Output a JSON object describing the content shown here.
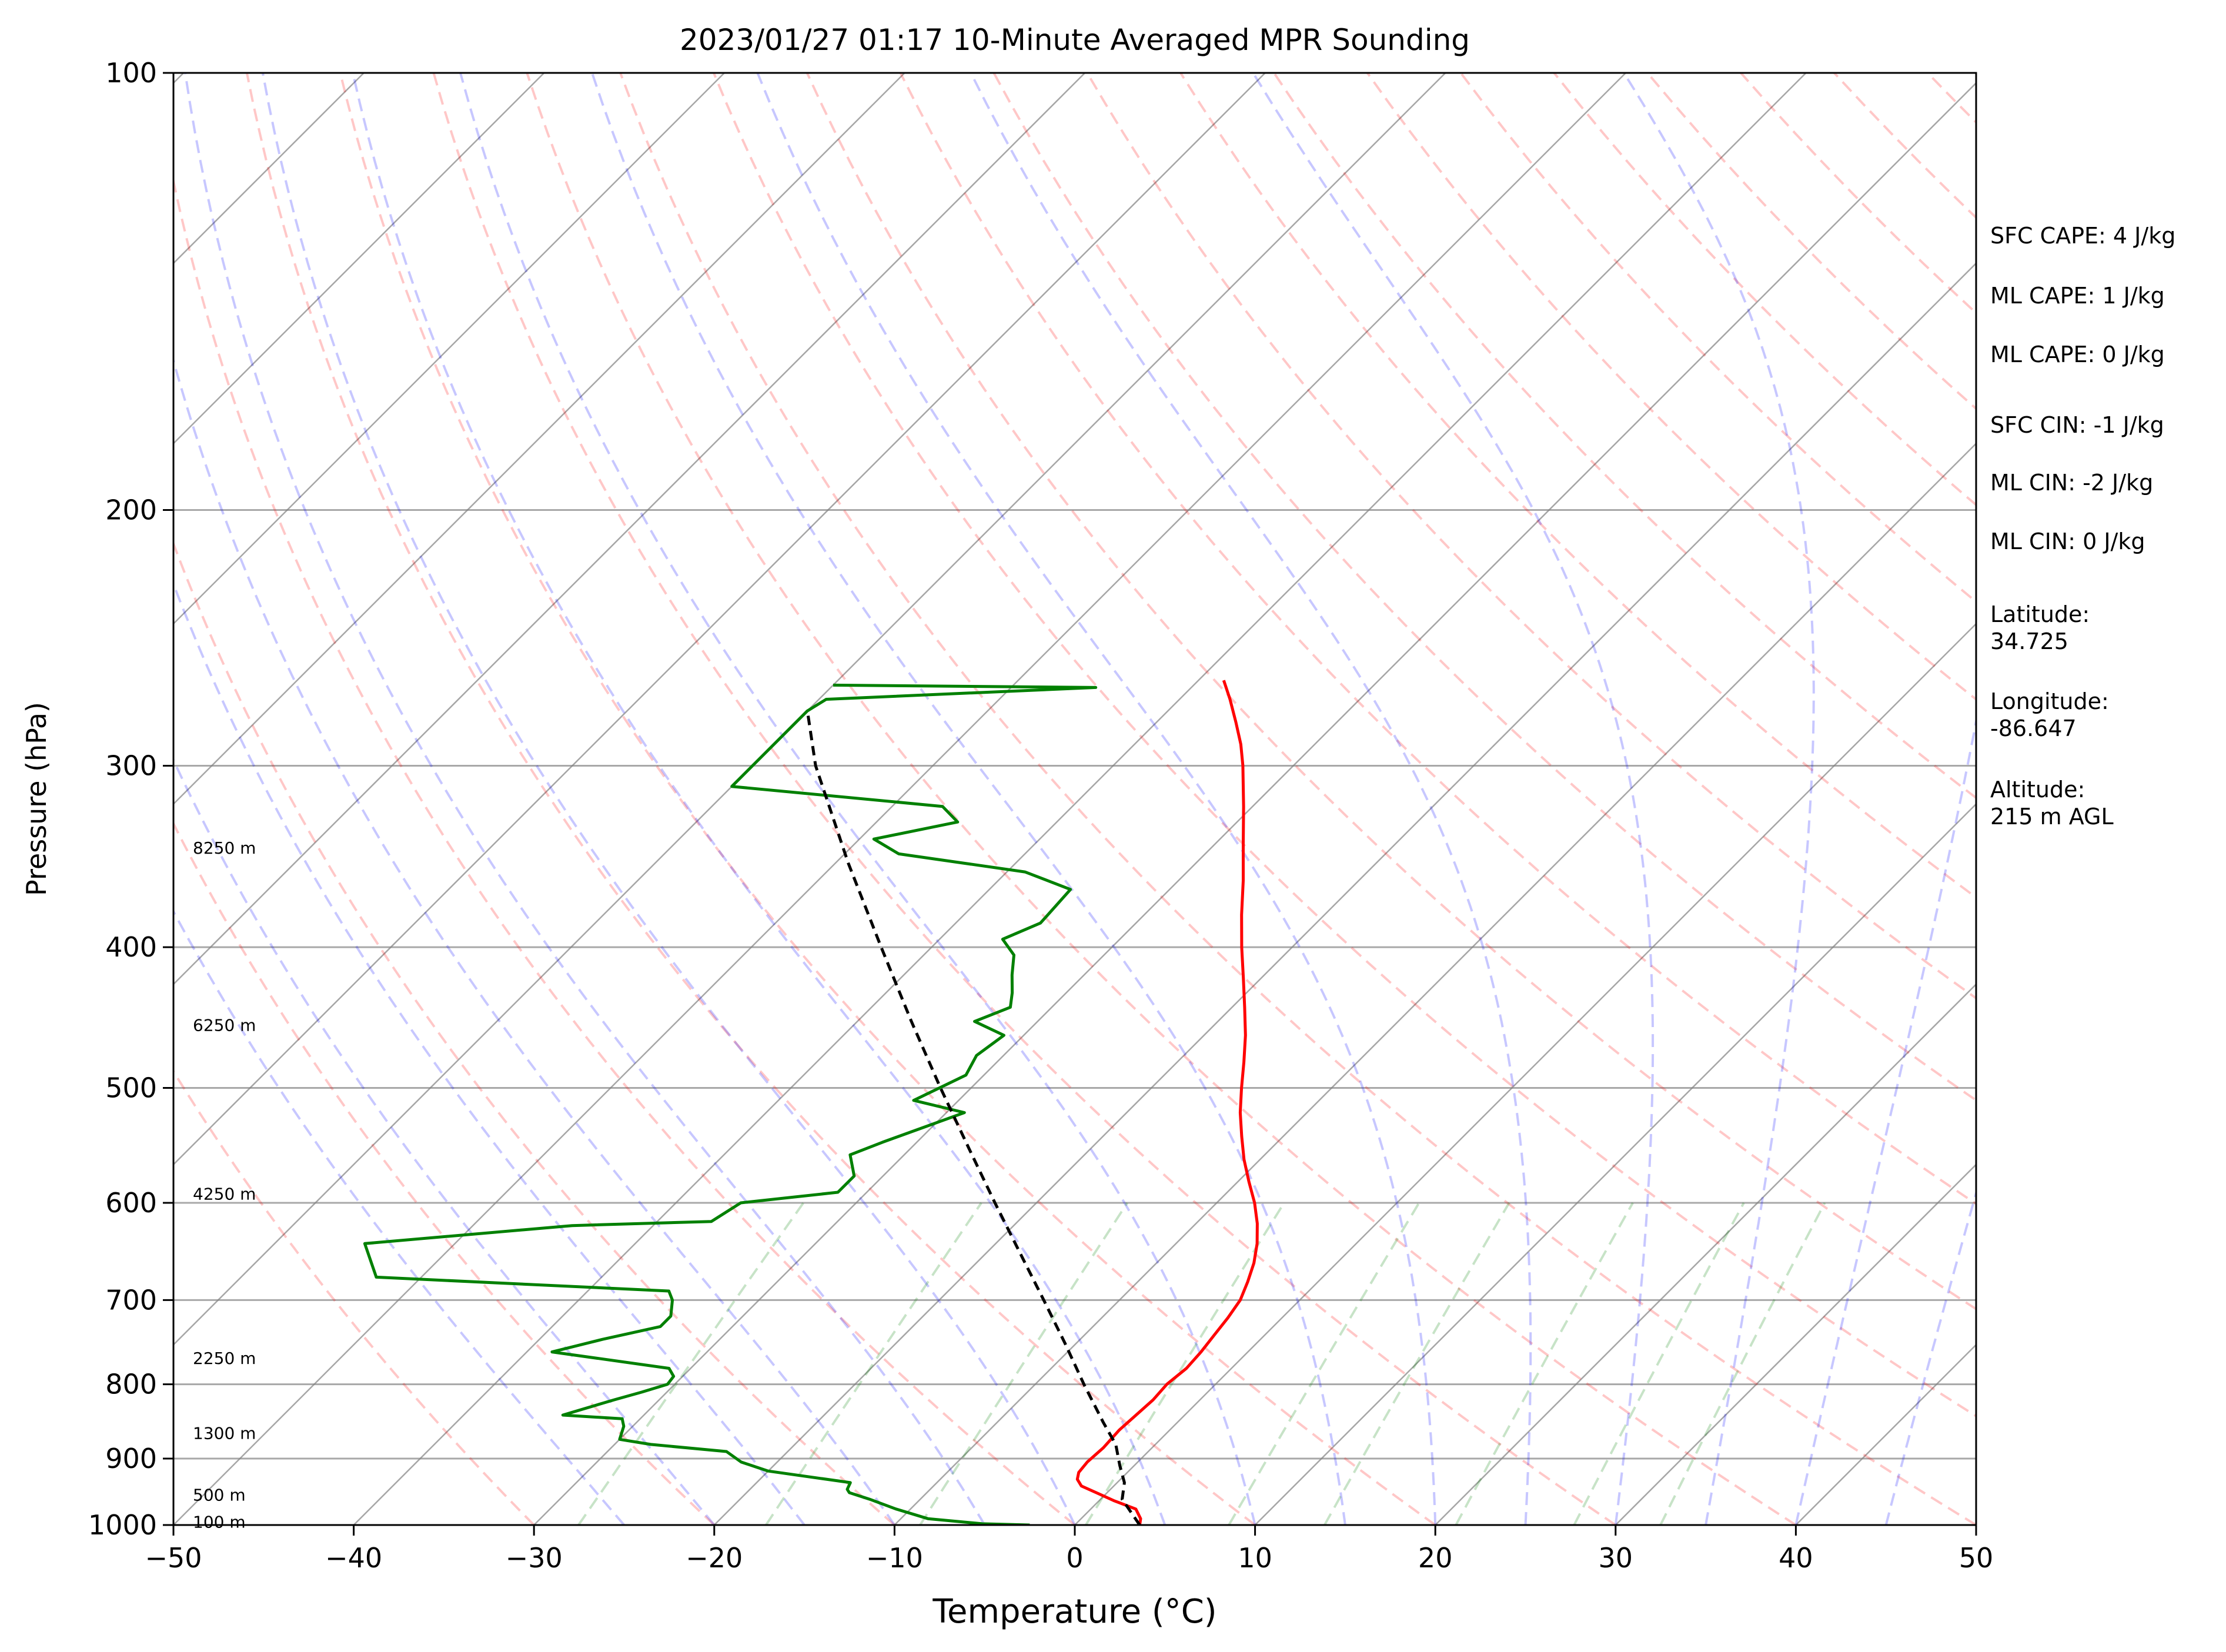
{
  "chart_data": {
    "type": "line",
    "title": "2023/01/27 01:17 10-Minute Averaged MPR Sounding",
    "xlabel": "Temperature (°C)",
    "ylabel": "Pressure (hPa)",
    "xlim": [
      -50,
      50
    ],
    "ylim": [
      1000,
      100
    ],
    "yscale": "log",
    "x_ticks": [
      "−50",
      "−40",
      "−30",
      "−20",
      "−10",
      "0",
      "10",
      "20",
      "30",
      "40",
      "50"
    ],
    "y_ticks": [
      "100",
      "200",
      "300",
      "400",
      "500",
      "600",
      "700",
      "800",
      "900",
      "1000"
    ],
    "grid": true,
    "skew": true,
    "height_labels": [
      {
        "p": 342,
        "text": "8250 m"
      },
      {
        "p": 453,
        "text": "6250 m"
      },
      {
        "p": 592,
        "text": "4250 m"
      },
      {
        "p": 768,
        "text": "2250 m"
      },
      {
        "p": 865,
        "text": "1300 m"
      },
      {
        "p": 954,
        "text": "500 m"
      },
      {
        "p": 996,
        "text": "100 m"
      }
    ],
    "series": [
      {
        "color": "#ff0000",
        "points": [
          [
            1000,
            3.6
          ],
          [
            990,
            3.3
          ],
          [
            975,
            2.5
          ],
          [
            962,
            0.8
          ],
          [
            950,
            -0.6
          ],
          [
            940,
            -1.8
          ],
          [
            930,
            -2.4
          ],
          [
            920,
            -2.7
          ],
          [
            905,
            -2.8
          ],
          [
            885,
            -2.7
          ],
          [
            860,
            -2.8
          ],
          [
            840,
            -2.7
          ],
          [
            820,
            -2.6
          ],
          [
            800,
            -2.7
          ],
          [
            780,
            -2.5
          ],
          [
            760,
            -2.6
          ],
          [
            740,
            -2.8
          ],
          [
            720,
            -3.0
          ],
          [
            700,
            -3.3
          ],
          [
            680,
            -3.9
          ],
          [
            660,
            -4.6
          ],
          [
            640,
            -5.5
          ],
          [
            620,
            -6.6
          ],
          [
            600,
            -7.9
          ],
          [
            580,
            -9.4
          ],
          [
            560,
            -10.9
          ],
          [
            540,
            -12.3
          ],
          [
            520,
            -13.7
          ],
          [
            500,
            -15.0
          ],
          [
            480,
            -16.3
          ],
          [
            460,
            -17.7
          ],
          [
            440,
            -19.3
          ],
          [
            420,
            -21.0
          ],
          [
            400,
            -22.8
          ],
          [
            380,
            -24.6
          ],
          [
            360,
            -26.4
          ],
          [
            340,
            -28.4
          ],
          [
            320,
            -30.5
          ],
          [
            300,
            -32.8
          ],
          [
            290,
            -34.1
          ],
          [
            280,
            -35.6
          ],
          [
            270,
            -37.2
          ],
          [
            262,
            -38.6
          ]
        ]
      },
      {
        "color": "#008000",
        "points": [
          [
            1000,
            -2.5
          ],
          [
            998,
            -5.2
          ],
          [
            990,
            -8.5
          ],
          [
            975,
            -10.8
          ],
          [
            960,
            -12.8
          ],
          [
            950,
            -14.3
          ],
          [
            945,
            -14.6
          ],
          [
            935,
            -14.8
          ],
          [
            918,
            -20.0
          ],
          [
            905,
            -22.0
          ],
          [
            890,
            -23.4
          ],
          [
            880,
            -28.0
          ],
          [
            873,
            -30.0
          ],
          [
            855,
            -30.5
          ],
          [
            845,
            -31.0
          ],
          [
            840,
            -34.5
          ],
          [
            820,
            -32.5
          ],
          [
            810,
            -31.4
          ],
          [
            800,
            -30.4
          ],
          [
            790,
            -30.5
          ],
          [
            780,
            -31.2
          ],
          [
            760,
            -38.6
          ],
          [
            745,
            -36.5
          ],
          [
            730,
            -34.0
          ],
          [
            718,
            -34.0
          ],
          [
            700,
            -34.8
          ],
          [
            690,
            -35.5
          ],
          [
            675,
            -52.5
          ],
          [
            640,
            -55.0
          ],
          [
            622,
            -44.5
          ],
          [
            618,
            -37.0
          ],
          [
            600,
            -36.4
          ],
          [
            590,
            -31.6
          ],
          [
            575,
            -31.6
          ],
          [
            556,
            -33.0
          ],
          [
            545,
            -31.9
          ],
          [
            520,
            -29.0
          ],
          [
            510,
            -32.5
          ],
          [
            490,
            -31.0
          ],
          [
            475,
            -31.5
          ],
          [
            460,
            -31.1
          ],
          [
            450,
            -33.5
          ],
          [
            440,
            -32.3
          ],
          [
            430,
            -33.0
          ],
          [
            418,
            -34.0
          ],
          [
            405,
            -35.0
          ],
          [
            395,
            -36.5
          ],
          [
            385,
            -35.3
          ],
          [
            375,
            -35.4
          ],
          [
            365,
            -35.5
          ],
          [
            355,
            -39.0
          ],
          [
            345,
            -47.0
          ],
          [
            337,
            -49.2
          ],
          [
            328,
            -45.5
          ],
          [
            320,
            -47.2
          ],
          [
            310,
            -60.0
          ],
          [
            275,
            -60.0
          ],
          [
            270,
            -59.6
          ],
          [
            265,
            -45.3
          ],
          [
            264,
            -60.0
          ]
        ]
      },
      {
        "color": "#000000",
        "dashed": true,
        "points": [
          [
            1000,
            3.6
          ],
          [
            960,
            1.2
          ],
          [
            935,
            0.4
          ],
          [
            910,
            -0.8
          ],
          [
            880,
            -2.2
          ],
          [
            850,
            -4.1
          ],
          [
            800,
            -7.3
          ],
          [
            750,
            -10.6
          ],
          [
            700,
            -14.2
          ],
          [
            650,
            -18.1
          ],
          [
            600,
            -22.3
          ],
          [
            550,
            -26.8
          ],
          [
            500,
            -31.7
          ],
          [
            450,
            -37.0
          ],
          [
            400,
            -42.8
          ],
          [
            350,
            -49.3
          ],
          [
            300,
            -56.5
          ],
          [
            275,
            -60.0
          ]
        ]
      }
    ]
  },
  "info": {
    "sfc_cape": "SFC CAPE: 4 J/kg",
    "ml_cape": "ML CAPE: 1 J/kg",
    "ml_cape_2": "ML CAPE: 0 J/kg",
    "sfc_cin": "SFC CIN: -1 J/kg",
    "ml_cin": "ML CIN: -2 J/kg",
    "ml_cin_2": "ML CIN: 0 J/kg",
    "lat_label": "Latitude:",
    "lat_value": "34.725",
    "lon_label": "Longitude:",
    "lon_value": "-86.647",
    "alt_label": "Altitude:",
    "alt_value": "215 m AGL"
  },
  "colors": {
    "temperature": "#ff0000",
    "dewpoint": "#008000",
    "parcel": "#000000",
    "dry_adiabat": "#ff0000",
    "moist_adiabat": "#0000ff",
    "mixing_ratio": "#008000",
    "isotherm": "#808080"
  }
}
